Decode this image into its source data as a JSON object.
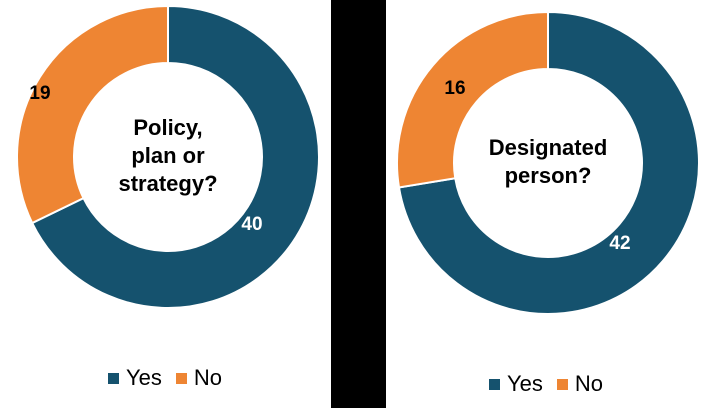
{
  "colors": {
    "yes": "#15526e",
    "no": "#ee8533",
    "background": "#000000",
    "panel": "#ffffff"
  },
  "chart_data": [
    {
      "type": "pie",
      "donut": true,
      "center_text": [
        "Policy,",
        "plan or",
        "strategy?"
      ],
      "categories": [
        "Yes",
        "No"
      ],
      "values": [
        40,
        19
      ],
      "data_labels": [
        "40",
        "19"
      ],
      "legend": {
        "position": "bottom",
        "entries": [
          "Yes",
          "No"
        ]
      }
    },
    {
      "type": "pie",
      "donut": true,
      "center_text": [
        "Designated",
        "person?"
      ],
      "categories": [
        "Yes",
        "No"
      ],
      "values": [
        42,
        16
      ],
      "data_labels": [
        "42",
        "16"
      ],
      "legend": {
        "position": "bottom",
        "entries": [
          "Yes",
          "No"
        ]
      }
    }
  ]
}
